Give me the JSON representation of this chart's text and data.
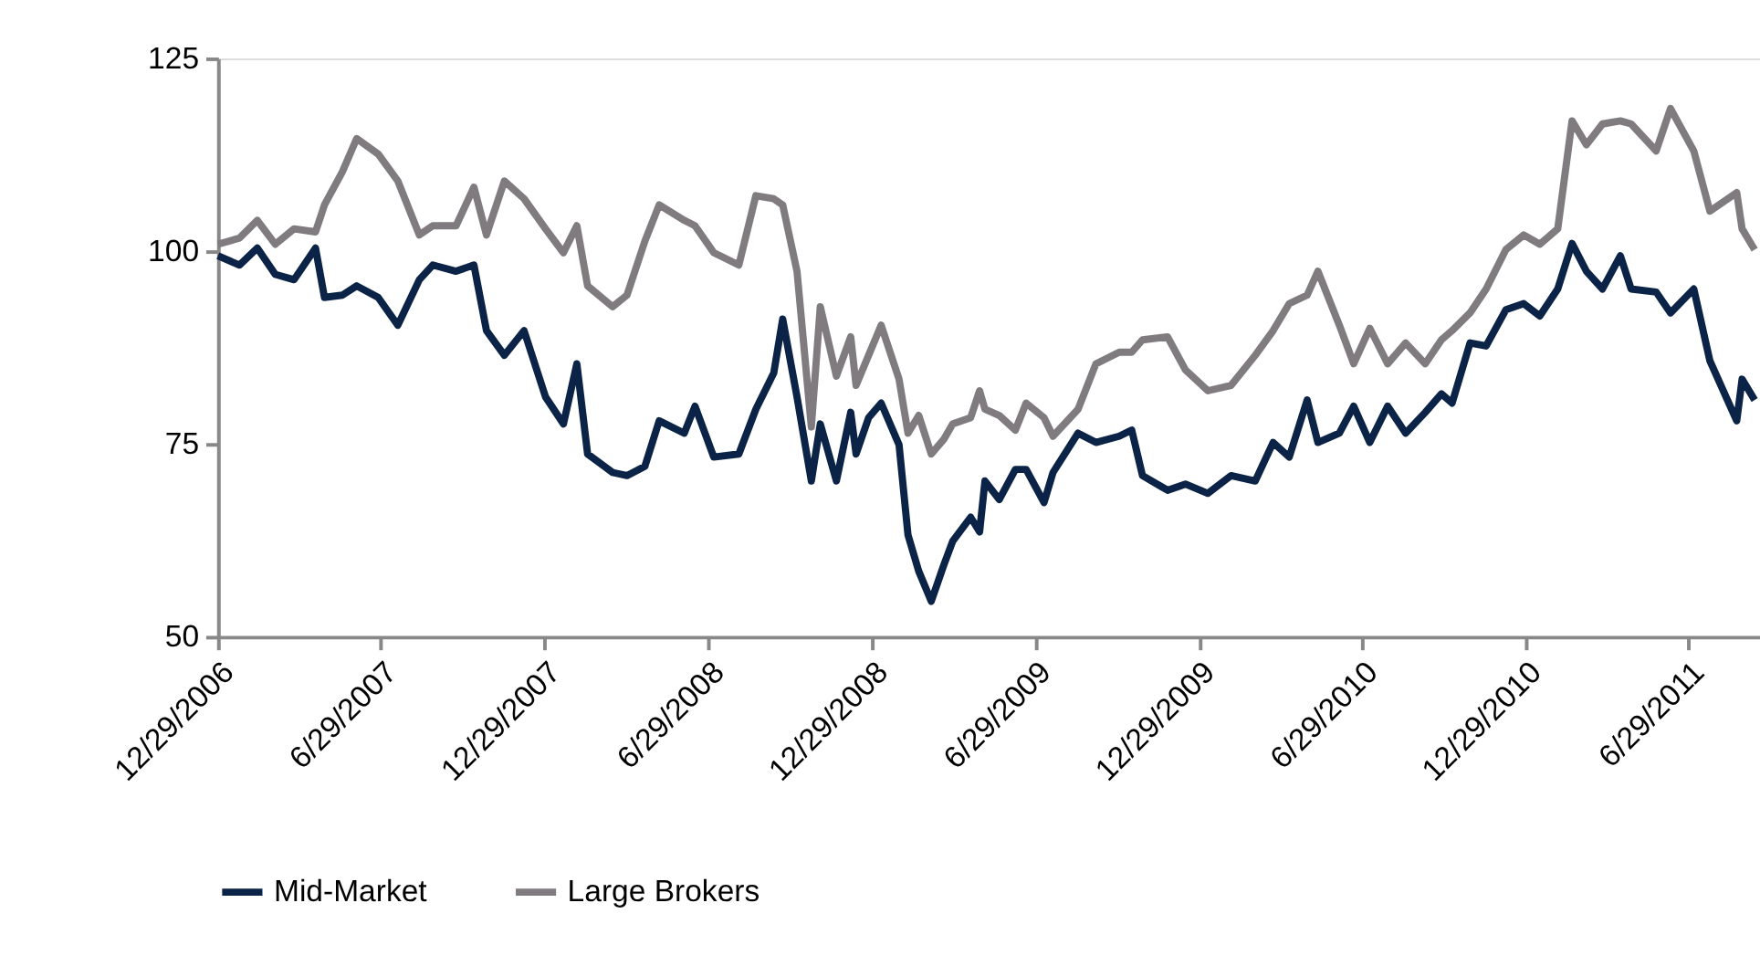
{
  "chart_data": {
    "type": "line",
    "x": [
      "2006-12-29",
      "2007-01-22",
      "2007-02-11",
      "2007-03-03",
      "2007-03-24",
      "2007-04-17",
      "2007-04-27",
      "2007-05-17",
      "2007-06-02",
      "2007-06-26",
      "2007-07-18",
      "2007-08-11",
      "2007-08-26",
      "2007-09-21",
      "2007-10-11",
      "2007-10-25",
      "2007-11-14",
      "2007-12-06",
      "2007-12-30",
      "2008-01-19",
      "2008-02-03",
      "2008-02-15",
      "2008-03-14",
      "2008-03-30",
      "2008-04-19",
      "2008-05-05",
      "2008-06-02",
      "2008-06-14",
      "2008-07-05",
      "2008-08-02",
      "2008-08-21",
      "2008-09-10",
      "2008-09-20",
      "2008-10-06",
      "2008-10-22",
      "2008-11-01",
      "2008-11-19",
      "2008-12-05",
      "2008-12-11",
      "2008-12-25",
      "2009-01-08",
      "2009-01-28",
      "2009-02-07",
      "2009-02-19",
      "2009-03-05",
      "2009-03-19",
      "2009-03-29",
      "2009-04-18",
      "2009-04-28",
      "2009-05-04",
      "2009-05-20",
      "2009-06-07",
      "2009-06-19",
      "2009-07-09",
      "2009-07-19",
      "2009-08-16",
      "2009-09-05",
      "2009-10-01",
      "2009-10-15",
      "2009-10-27",
      "2009-11-24",
      "2009-12-14",
      "2010-01-08",
      "2010-02-03",
      "2010-03-02",
      "2010-03-22",
      "2010-04-09",
      "2010-04-29",
      "2010-05-11",
      "2010-06-04",
      "2010-06-20",
      "2010-07-08",
      "2010-07-28",
      "2010-08-17",
      "2010-09-08",
      "2010-09-26",
      "2010-10-08",
      "2010-10-28",
      "2010-11-15",
      "2010-12-07",
      "2010-12-27",
      "2011-01-14",
      "2011-02-03",
      "2011-02-19",
      "2011-03-07",
      "2011-03-25",
      "2011-04-14",
      "2011-04-26",
      "2011-05-24",
      "2011-06-09",
      "2011-07-05",
      "2011-07-23",
      "2011-08-22",
      "2011-08-28",
      "2011-09-11"
    ],
    "series": [
      {
        "name": "Mid-Market",
        "color": "#0b2346",
        "values": [
          99.4,
          98.2,
          100.4,
          97,
          96.3,
          100.4,
          94,
          94.3,
          95.5,
          94,
          90.4,
          96.3,
          98.2,
          97.4,
          98.2,
          89.7,
          86.5,
          89.7,
          81.1,
          77.6,
          85.4,
          73.7,
          71.3,
          70.9,
          72.1,
          78,
          76.4,
          79.9,
          73.3,
          73.7,
          79.5,
          84.2,
          91.2,
          81.1,
          70.2,
          77.6,
          70.2,
          79.1,
          73.7,
          78.4,
          80.3,
          74.9,
          63.2,
          58.5,
          54.6,
          59.3,
          62.4,
          65.5,
          63.6,
          70.2,
          67.8,
          71.7,
          71.7,
          67.4,
          71.3,
          76.4,
          75.2,
          76,
          76.8,
          70.9,
          69,
          69.8,
          68.6,
          70.9,
          70.2,
          75.2,
          73.3,
          80.7,
          75.2,
          76.4,
          79.9,
          75.2,
          79.9,
          76.4,
          79.1,
          81.5,
          80.3,
          88.1,
          87.7,
          92.4,
          93.2,
          91.6,
          95.1,
          101,
          97.4,
          95.1,
          99.4,
          95.1,
          94.7,
          92,
          95.1,
          85.8,
          78,
          83.4,
          80.7
        ]
      },
      {
        "name": "Large Brokers",
        "color": "#7f7b7f",
        "values": [
          100.9,
          101.7,
          104,
          100.9,
          102.9,
          102.5,
          106,
          110.3,
          114.6,
          112.6,
          109.1,
          102.1,
          103.3,
          103.3,
          108.3,
          102.1,
          109.1,
          106.8,
          102.9,
          99.8,
          103.3,
          95.5,
          92.8,
          94.3,
          101.3,
          106,
          104,
          103.3,
          99.8,
          98.2,
          107.2,
          106.8,
          106,
          97.4,
          77.2,
          92.8,
          83.8,
          88.9,
          82.6,
          86.5,
          90.4,
          83.4,
          76.4,
          78.7,
          73.7,
          75.6,
          77.6,
          78.4,
          81.9,
          79.5,
          78.7,
          76.8,
          80.3,
          78.4,
          76,
          79.5,
          85.4,
          86.9,
          86.9,
          88.5,
          88.9,
          84.6,
          81.9,
          82.6,
          86.5,
          89.7,
          93.2,
          94.3,
          97.4,
          90.4,
          85.4,
          90,
          85.4,
          88.1,
          85.4,
          88.5,
          89.7,
          92,
          95.1,
          100.2,
          102.1,
          100.9,
          102.9,
          116.9,
          113.8,
          116.5,
          116.9,
          116.5,
          113,
          118.5,
          113,
          105.2,
          107.6,
          102.9,
          100.2
        ]
      }
    ],
    "xlim": [
      "2006-12-29",
      "2011-09-17"
    ],
    "xticks": [
      {
        "value": "2006-12-29",
        "label": "12/29/2006"
      },
      {
        "value": "2007-06-29",
        "label": "6/29/2007"
      },
      {
        "value": "2007-12-29",
        "label": "12/29/2007"
      },
      {
        "value": "2008-06-29",
        "label": "6/29/2008"
      },
      {
        "value": "2008-12-29",
        "label": "12/29/2008"
      },
      {
        "value": "2009-06-29",
        "label": "6/29/2009"
      },
      {
        "value": "2009-12-29",
        "label": "12/29/2009"
      },
      {
        "value": "2010-06-29",
        "label": "6/29/2010"
      },
      {
        "value": "2010-12-29",
        "label": "12/29/2010"
      },
      {
        "value": "2011-06-29",
        "label": "6/29/2011"
      }
    ],
    "ylim": [
      50,
      125
    ],
    "yticks": [
      50,
      75,
      100,
      125
    ],
    "grid": false,
    "legend": "bottom",
    "line_style": "solid",
    "marker": "none"
  }
}
